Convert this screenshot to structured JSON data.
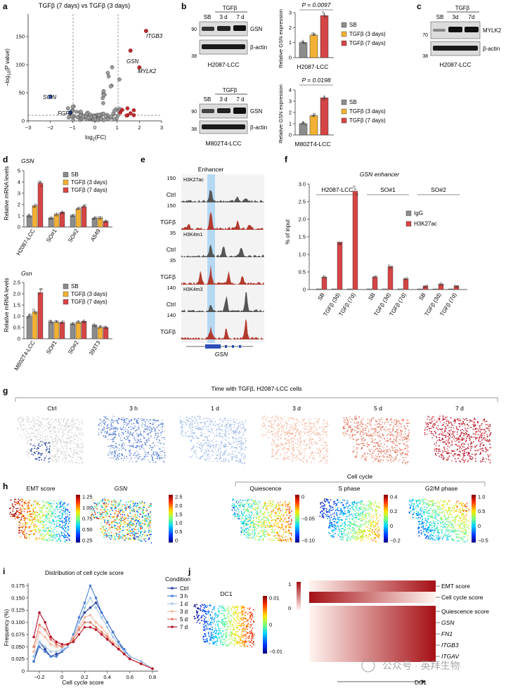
{
  "panels": {
    "a": {
      "letter": "a",
      "title": "TGFβ (7 days) vs TGFβ (3 days)",
      "xlabel": "log",
      "xlabel_sub": "2",
      "xlabel_tail": "(FC)",
      "ylabel": "−log",
      "ylabel_sub": "10",
      "ylabel_tail": "(P value)",
      "genes": {
        "itgb3": "ITGB3",
        "gsn": "GSN",
        "mylk2": "MYLK2",
        "scin": "SCIN",
        "fgf9": "FGF9"
      },
      "xticks": [
        "−3",
        "−2",
        "−1",
        "0",
        "1",
        "2",
        "3"
      ],
      "yticks": [
        "0",
        "50",
        "100",
        "150"
      ]
    },
    "b": {
      "letter": "b",
      "tgfb": "TGFβ",
      "lanes": [
        "SB",
        "3 d",
        "7 d"
      ],
      "mw_top": [
        "90",
        "38"
      ],
      "mw_bottom": [
        "90",
        "38"
      ],
      "gsn": "GSN",
      "actin": "β-actin",
      "cell1": "H2087-LCC",
      "cell2": "M802T4-LCC",
      "bar_ylabel": "Relative GSN expression",
      "pval1": "P = 0.0097",
      "pval2": "P = 0.0198",
      "bar_yticks1": [
        "0",
        "1",
        "2",
        "3"
      ],
      "bar_yticks2": [
        "0",
        "1",
        "2",
        "3",
        "4"
      ],
      "legend": [
        "SB",
        "TGFβ (3 days)",
        "TGFβ (7 days)"
      ]
    },
    "c": {
      "letter": "c",
      "tgfb": "TGFβ",
      "lanes": [
        "SB",
        "3d",
        "7d"
      ],
      "mw": [
        "70",
        "38"
      ],
      "mylk2": "MYLK2",
      "actin": "β-actin",
      "cell": "H2087-LCC"
    },
    "d": {
      "letter": "d",
      "gene1": "GSN",
      "gene2": "Gsn",
      "ylabel": "Relative mRNA levels",
      "yticks1": [
        "0",
        "1",
        "2",
        "3",
        "4",
        "5"
      ],
      "yticks2": [
        "0",
        "0.5",
        "1.0",
        "1.5",
        "2.0",
        "2.5"
      ],
      "cells1": [
        "H2087-LCC",
        "SO#1",
        "SO#2",
        "A549"
      ],
      "cells2": [
        "M802T4-LCC",
        "SO#1",
        "SO#2",
        "393T3"
      ],
      "legend": [
        "SB",
        "TGFβ (3 days)",
        "TGFβ (7 days)"
      ]
    },
    "e": {
      "letter": "e",
      "enhancer": "Enhancer",
      "tracks": [
        {
          "scale": "150",
          "mark": "H3K27ac",
          "cond": "Ctrl"
        },
        {
          "scale": "150",
          "mark": "",
          "cond": "TGFβ"
        },
        {
          "scale": "35",
          "mark": "H3K4m1",
          "cond": "Ctrl"
        },
        {
          "scale": "35",
          "mark": "",
          "cond": "TGFβ"
        },
        {
          "scale": "140",
          "mark": "H3K4m3",
          "cond": "Ctrl"
        },
        {
          "scale": "140",
          "mark": "",
          "cond": "TGFβ"
        }
      ],
      "gene": "GSN"
    },
    "f": {
      "letter": "f",
      "title": "GSN enhancer",
      "ylabel": "% of input",
      "yticks": [
        "0",
        "0.5",
        "1.0",
        "1.5",
        "2.0",
        "2.5",
        "3.0"
      ],
      "groups": [
        "H2087-LCC",
        "SO#1",
        "SO#2"
      ],
      "conds": [
        "SB",
        "TGFβ (3d)",
        "TGFβ (7d)"
      ],
      "legend": [
        "IgG",
        "H3K27ac"
      ]
    },
    "g": {
      "letter": "g",
      "title": "Time with TGFβ, H2087-LCC cells",
      "times": [
        "Ctrl",
        "3 h",
        "1 d",
        "3 d",
        "5 d",
        "7 d"
      ]
    },
    "h": {
      "letter": "h",
      "emt": "EMT score",
      "gsn": "GSN",
      "cellcycle": "Cell cycle",
      "quiescence": "Quiescence",
      "sphase": "S phase",
      "g2m": "G2/M phase",
      "emt_ticks": [
        "1.25",
        "1.00",
        "0.75",
        "0.50",
        "0.25"
      ],
      "gsn_ticks": [
        "2.5",
        "2.0",
        "1.5",
        "1.0",
        "0.5",
        "0"
      ],
      "q_ticks": [
        "0",
        "−0.05",
        "−0.10"
      ],
      "s_ticks": [
        "0.4",
        "0.2",
        "0",
        "−0.2"
      ],
      "g_ticks": [
        "1.0",
        "0.5",
        "0",
        "−0.5"
      ]
    },
    "i": {
      "letter": "i",
      "title": "Distribution of cell cycle score",
      "xlabel": "Cell cycle score",
      "ylabel": "Frequency (%)",
      "legend_title": "Condition"
    },
    "j": {
      "letter": "j",
      "dc1": "DC1",
      "dc1_ticks": [
        "0.01",
        "0",
        "−0.01"
      ],
      "heat_ticks": [
        "1",
        "0"
      ],
      "rows": [
        "EMT score",
        "Cell cycle score",
        "Quiescence score",
        "GSN",
        "FN1",
        "ITGB3",
        "ITGAV"
      ],
      "axis": "DC1"
    }
  },
  "watermark": "公众号 · 英拜生物",
  "colors": {
    "sb": "#8c8c8c",
    "tgfb3": "#f2b134",
    "tgfb7": "#d64545",
    "vdown": "#2f4fb0",
    "vup": "#c0272d"
  },
  "chart_data": [
    {
      "type": "scatter",
      "title": "TGFβ (7 days) vs TGFβ (3 days)",
      "xlabel": "log2(FC)",
      "ylabel": "−log10(P value)",
      "xlim": [
        -3,
        3
      ],
      "ylim": [
        0,
        190
      ],
      "labeled": [
        {
          "gene": "ITGB3",
          "x": 2.3,
          "y": 160
        },
        {
          "gene": "GSN",
          "x": 1.6,
          "y": 125
        },
        {
          "gene": "MYLK2",
          "x": 2.0,
          "y": 95
        },
        {
          "gene": "SCIN",
          "x": -2.0,
          "y": 43
        },
        {
          "gene": "FGF9",
          "x": -1.1,
          "y": 15
        }
      ]
    },
    {
      "type": "bar",
      "ylabel": "Relative GSN expression",
      "panels": [
        {
          "cell": "H2087-LCC",
          "ylim": [
            0,
            3
          ],
          "categories": [
            "SB",
            "TGFβ (3 days)",
            "TGFβ (7 days)"
          ],
          "values": [
            1.0,
            1.5,
            2.8
          ]
        },
        {
          "cell": "M802T4-LCC",
          "ylim": [
            0,
            4
          ],
          "categories": [
            "SB",
            "TGFβ (3 days)",
            "TGFβ (7 days)"
          ],
          "values": [
            1.0,
            1.7,
            3.3
          ]
        }
      ]
    },
    {
      "type": "bar",
      "ylabel": "Relative mRNA levels",
      "panels": [
        {
          "gene": "GSN",
          "ylim": [
            0,
            5
          ],
          "categories": [
            "H2087-LCC",
            "SO#1",
            "SO#2",
            "A549"
          ],
          "series": [
            {
              "name": "SB",
              "values": [
                1.0,
                0.8,
                1.0,
                0.8
              ]
            },
            {
              "name": "TGFβ (3 days)",
              "values": [
                1.9,
                1.1,
                1.6,
                0.8
              ]
            },
            {
              "name": "TGFβ (7 days)",
              "values": [
                3.9,
                1.3,
                1.8,
                0.5
              ]
            }
          ]
        },
        {
          "gene": "Gsn",
          "ylim": [
            0,
            2.5
          ],
          "categories": [
            "M802T4-LCC",
            "SO#1",
            "SO#2",
            "393T3"
          ],
          "series": [
            {
              "name": "SB",
              "values": [
                1.0,
                0.75,
                0.65,
                0.6
              ]
            },
            {
              "name": "TGFβ (3 days)",
              "values": [
                1.2,
                0.72,
                0.72,
                0.5
              ]
            },
            {
              "name": "TGFβ (7 days)",
              "values": [
                2.05,
                0.72,
                0.78,
                0.5
              ]
            }
          ]
        }
      ]
    },
    {
      "type": "bar",
      "title": "GSN enhancer",
      "ylabel": "% of input",
      "ylim": [
        0,
        3
      ],
      "categories": [
        "H2087-LCC SB",
        "H2087-LCC TGFβ (3d)",
        "H2087-LCC TGFβ (7d)",
        "SO#1 SB",
        "SO#1 TGFβ (3d)",
        "SO#1 TGFβ (7d)",
        "SO#2 SB",
        "SO#2 TGFβ (3d)",
        "SO#2 TGFβ (7d)"
      ],
      "series": [
        {
          "name": "IgG",
          "values": [
            0.02,
            0.02,
            0.02,
            0.02,
            0.02,
            0.02,
            0.02,
            0.02,
            0.02
          ]
        },
        {
          "name": "H3K27ac",
          "values": [
            0.35,
            1.35,
            2.8,
            0.35,
            0.65,
            0.3,
            0.1,
            0.15,
            0.1
          ]
        }
      ]
    },
    {
      "type": "line",
      "title": "Distribution of cell cycle score",
      "xlabel": "Cell cycle score",
      "ylabel": "Frequency (%)",
      "xlim": [
        -0.3,
        0.85
      ],
      "ylim": [
        0,
        0.18
      ],
      "x": [
        -0.25,
        -0.2,
        -0.15,
        -0.1,
        -0.05,
        0,
        0.05,
        0.1,
        0.15,
        0.2,
        0.25,
        0.3,
        0.35,
        0.4,
        0.45,
        0.5,
        0.55,
        0.6,
        0.7,
        0.8
      ],
      "series": [
        {
          "name": "Ctrl",
          "color": "#2d3e9a",
          "values": [
            0.02,
            0.06,
            0.045,
            0.03,
            0.035,
            0.04,
            0.05,
            0.07,
            0.1,
            0.12,
            0.13,
            0.14,
            0.12,
            0.1,
            0.08,
            0.06,
            0.04,
            0.03,
            0.02,
            0.005
          ]
        },
        {
          "name": "3 h",
          "color": "#4a7fd6",
          "values": [
            0.02,
            0.05,
            0.04,
            0.03,
            0.03,
            0.04,
            0.05,
            0.075,
            0.11,
            0.14,
            0.175,
            0.15,
            0.12,
            0.1,
            0.08,
            0.06,
            0.045,
            0.03,
            0.02,
            0.005
          ]
        },
        {
          "name": "1 d",
          "color": "#a6c8ea",
          "values": [
            0.03,
            0.06,
            0.05,
            0.04,
            0.04,
            0.045,
            0.05,
            0.07,
            0.1,
            0.13,
            0.15,
            0.13,
            0.11,
            0.09,
            0.07,
            0.055,
            0.04,
            0.03,
            0.02,
            0.005
          ]
        },
        {
          "name": "3 d",
          "color": "#f3b9a0",
          "values": [
            0.04,
            0.08,
            0.07,
            0.055,
            0.05,
            0.05,
            0.055,
            0.07,
            0.09,
            0.11,
            0.115,
            0.1,
            0.09,
            0.075,
            0.06,
            0.05,
            0.035,
            0.025,
            0.015,
            0.005
          ]
        },
        {
          "name": "5 d",
          "color": "#e37d6a",
          "values": [
            0.05,
            0.095,
            0.085,
            0.065,
            0.055,
            0.05,
            0.055,
            0.065,
            0.085,
            0.1,
            0.1,
            0.09,
            0.08,
            0.07,
            0.055,
            0.045,
            0.035,
            0.025,
            0.015,
            0.005
          ]
        },
        {
          "name": "7 d",
          "color": "#b5122b",
          "values": [
            0.07,
            0.12,
            0.1,
            0.07,
            0.06,
            0.055,
            0.055,
            0.06,
            0.075,
            0.09,
            0.09,
            0.085,
            0.075,
            0.065,
            0.055,
            0.045,
            0.035,
            0.025,
            0.015,
            0.005
          ]
        }
      ]
    }
  ]
}
